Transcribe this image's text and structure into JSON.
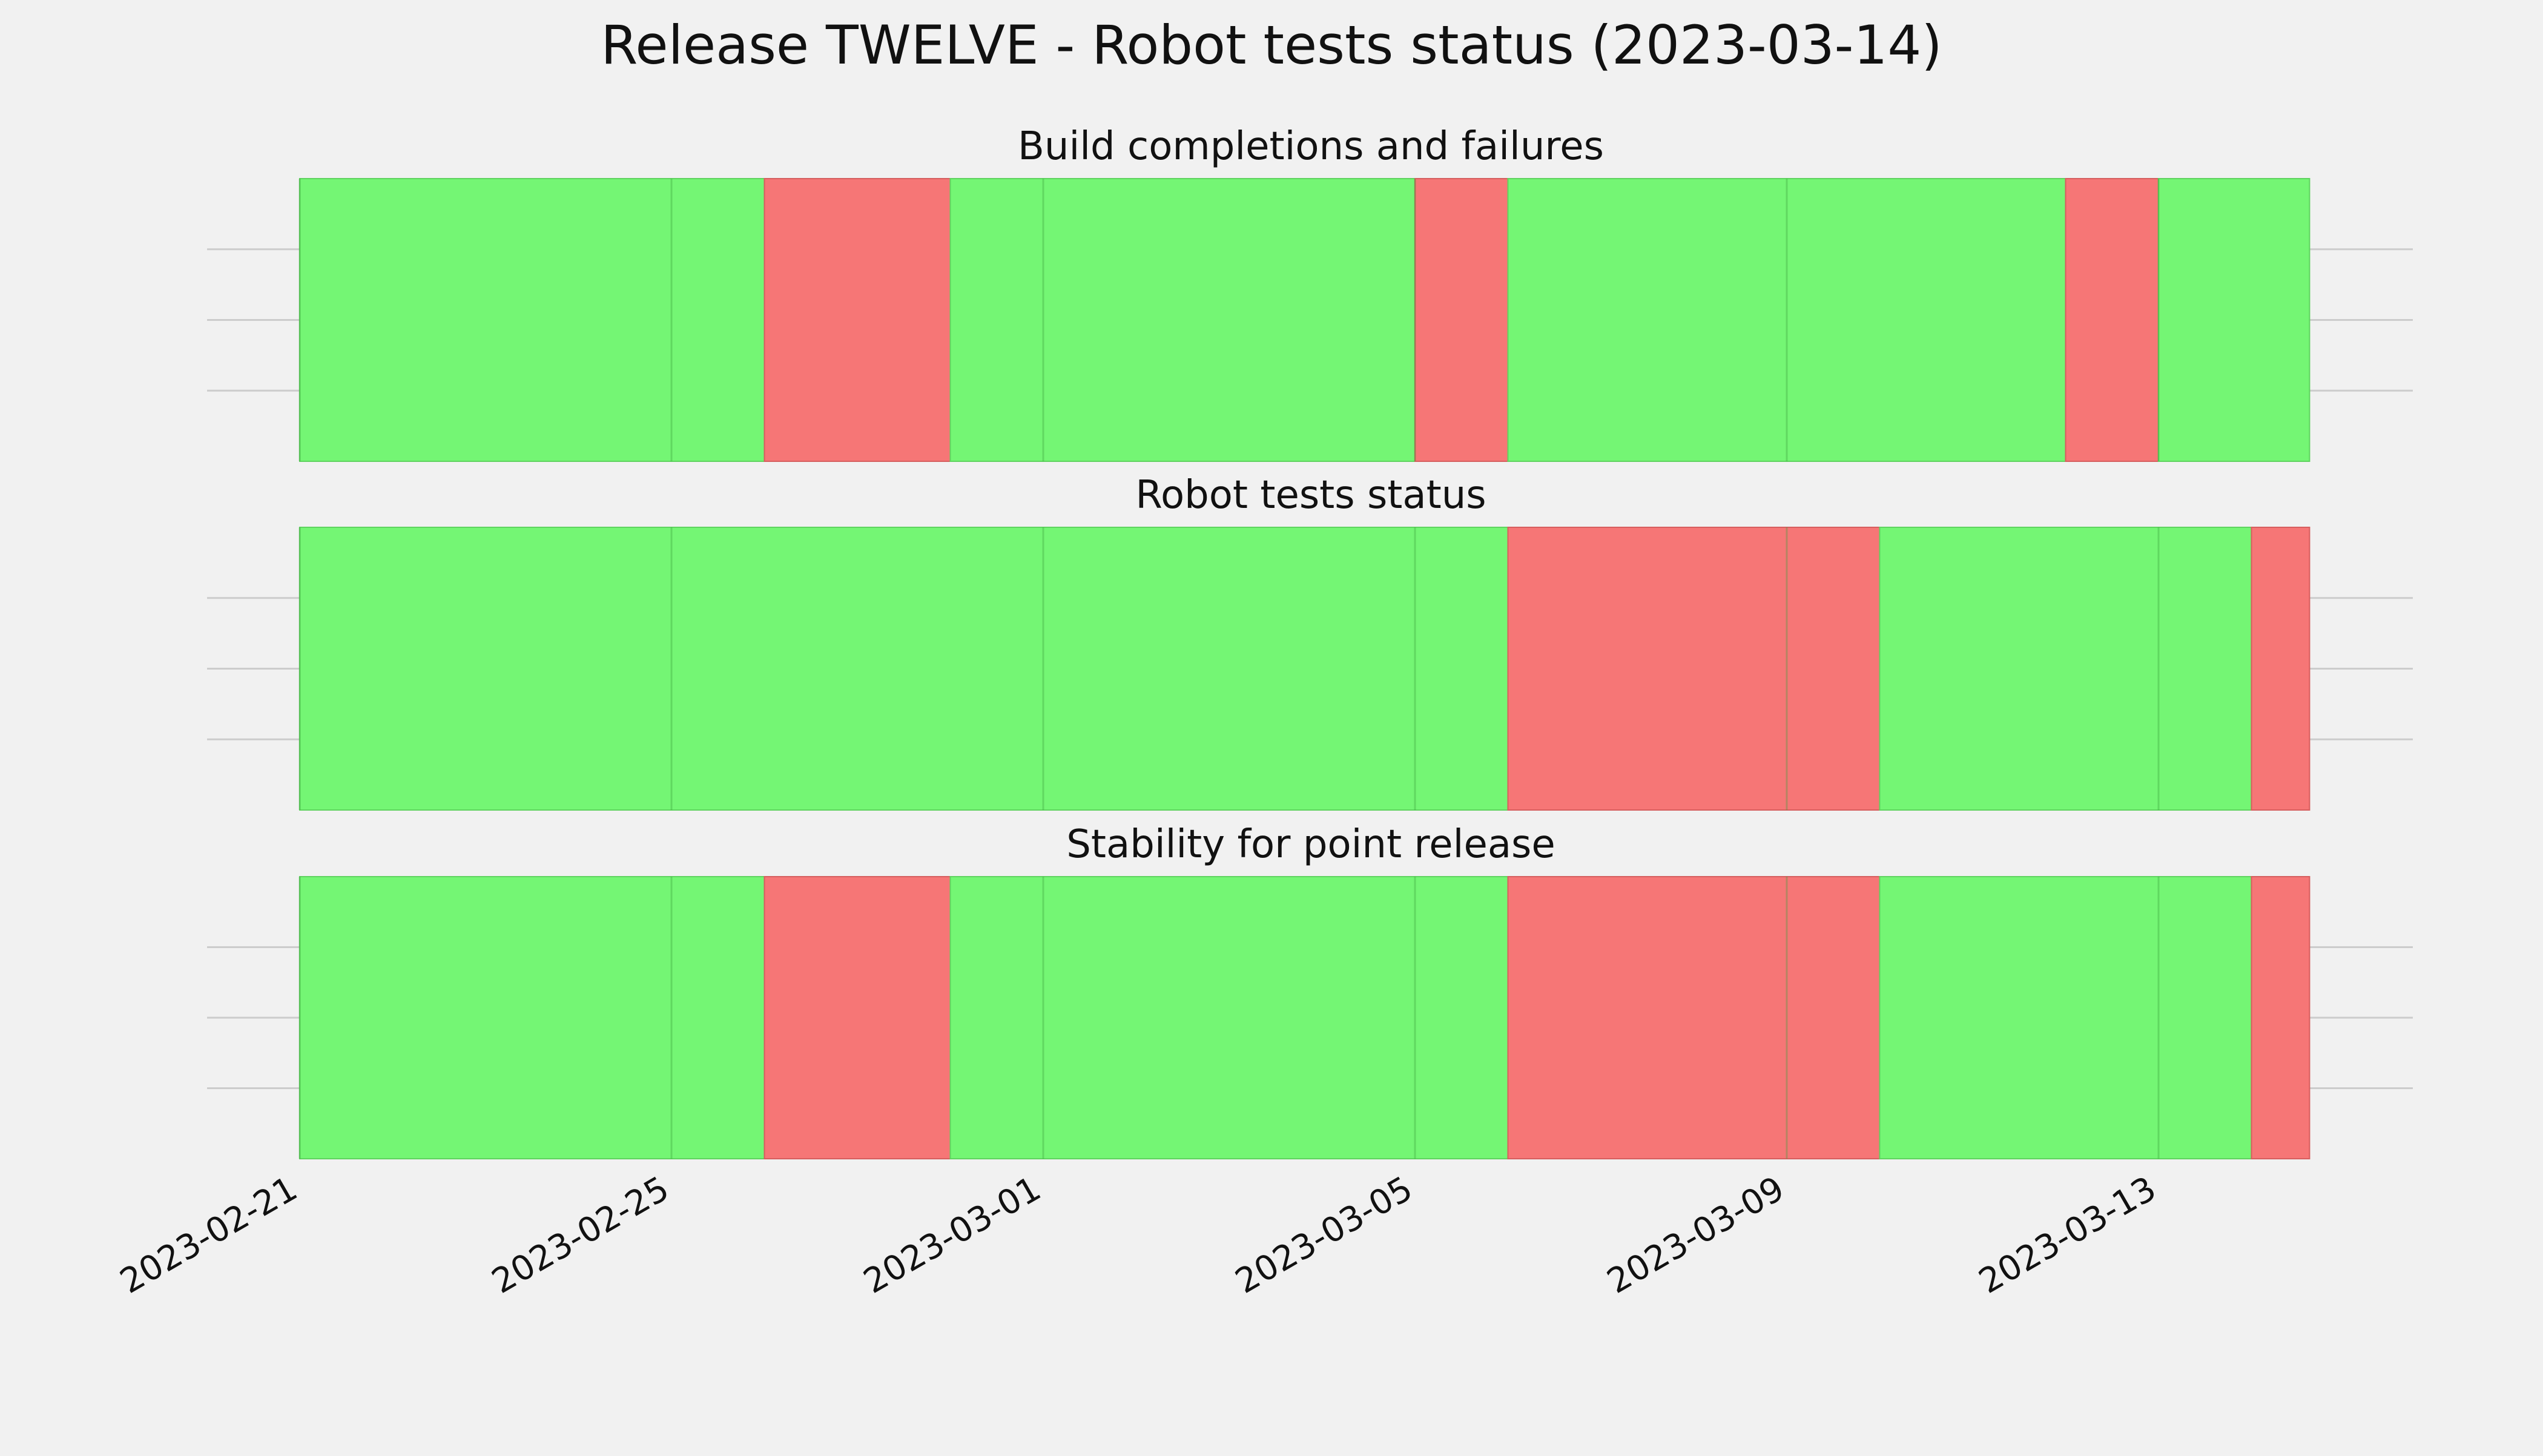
{
  "chart_data": {
    "type": "timeline",
    "title": "Release TWELVE - Robot tests status (2023-03-14)",
    "xaxis": {
      "type": "date",
      "range": [
        "2023-02-21",
        "2023-03-15"
      ],
      "ticks": [
        "2023-02-21",
        "2023-02-25",
        "2023-03-01",
        "2023-03-05",
        "2023-03-09",
        "2023-03-13"
      ],
      "tick_rotation": "30deg"
    },
    "grid": true,
    "colors": {
      "pass": "#74f674",
      "fail": "#f67676",
      "background": "#f1f1f1",
      "grid": "#cccccc",
      "text": "#111111"
    },
    "panels": [
      {
        "title": "Build completions and failures",
        "segments": [
          {
            "start": "2023-02-21",
            "end": "2023-02-26",
            "status": "pass"
          },
          {
            "start": "2023-02-26",
            "end": "2023-02-28",
            "status": "fail"
          },
          {
            "start": "2023-02-28",
            "end": "2023-03-05",
            "status": "pass"
          },
          {
            "start": "2023-03-05",
            "end": "2023-03-06",
            "status": "fail"
          },
          {
            "start": "2023-03-06",
            "end": "2023-03-12",
            "status": "pass"
          },
          {
            "start": "2023-03-12",
            "end": "2023-03-13",
            "status": "fail"
          },
          {
            "start": "2023-03-13",
            "end": "2023-03-14 15:00",
            "status": "pass"
          }
        ]
      },
      {
        "title": "Robot tests status",
        "segments": [
          {
            "start": "2023-02-21",
            "end": "2023-03-06",
            "status": "pass"
          },
          {
            "start": "2023-03-06",
            "end": "2023-03-10",
            "status": "fail"
          },
          {
            "start": "2023-03-10",
            "end": "2023-03-14",
            "status": "pass"
          },
          {
            "start": "2023-03-14",
            "end": "2023-03-14 15:00",
            "status": "fail"
          }
        ]
      },
      {
        "title": "Stability for point release",
        "segments": [
          {
            "start": "2023-02-21",
            "end": "2023-02-26",
            "status": "pass"
          },
          {
            "start": "2023-02-26",
            "end": "2023-02-28",
            "status": "fail"
          },
          {
            "start": "2023-02-28",
            "end": "2023-03-06",
            "status": "pass"
          },
          {
            "start": "2023-03-06",
            "end": "2023-03-10",
            "status": "fail"
          },
          {
            "start": "2023-03-10",
            "end": "2023-03-14",
            "status": "pass"
          },
          {
            "start": "2023-03-14",
            "end": "2023-03-14 15:00",
            "status": "fail"
          }
        ]
      }
    ]
  }
}
